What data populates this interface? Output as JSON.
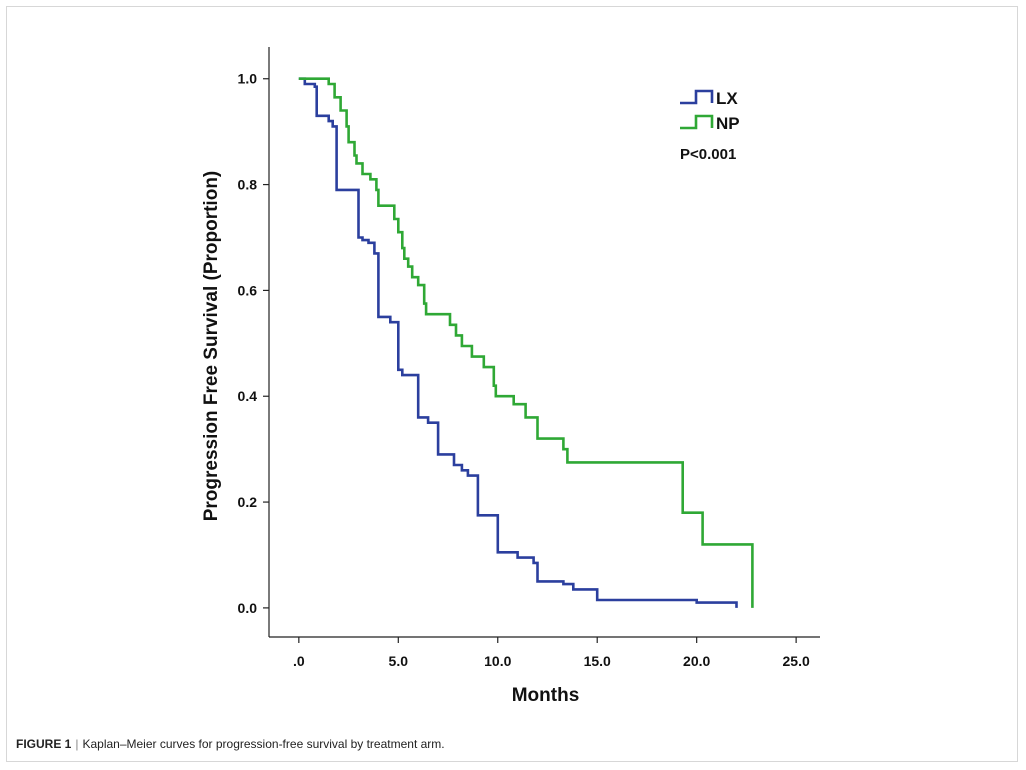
{
  "caption": {
    "label": "FIGURE 1",
    "separator": "|",
    "text": "Kaplan–Meier curves for progression-free survival by treatment arm."
  },
  "chart_data": {
    "type": "line",
    "step": true,
    "title": "",
    "xlabel": "Months",
    "ylabel": "Progression Free Survival (Proportion)",
    "xlim": [
      -1.5,
      26.2
    ],
    "ylim": [
      -0.055,
      1.06
    ],
    "x_ticks": [
      0,
      5,
      10,
      15,
      20,
      25
    ],
    "x_tick_labels": [
      ".0",
      "5.0",
      "10.0",
      "15.0",
      "20.0",
      "25.0"
    ],
    "y_ticks": [
      0,
      0.2,
      0.4,
      0.6,
      0.8,
      1.0
    ],
    "y_tick_labels": [
      "0.0",
      "0.2",
      "0.4",
      "0.6",
      "0.8",
      "1.0"
    ],
    "legend_position": "top-right",
    "annotation": "P<0.001",
    "series": [
      {
        "name": "LX",
        "color": "#2b3f9e",
        "points": [
          [
            0,
            1.0
          ],
          [
            0.3,
            0.99
          ],
          [
            0.8,
            0.985
          ],
          [
            0.9,
            0.93
          ],
          [
            1.5,
            0.92
          ],
          [
            1.7,
            0.91
          ],
          [
            1.9,
            0.79
          ],
          [
            3.0,
            0.7
          ],
          [
            3.2,
            0.695
          ],
          [
            3.5,
            0.69
          ],
          [
            3.8,
            0.67
          ],
          [
            4.0,
            0.55
          ],
          [
            4.6,
            0.54
          ],
          [
            5.0,
            0.45
          ],
          [
            5.2,
            0.44
          ],
          [
            6.0,
            0.36
          ],
          [
            6.5,
            0.35
          ],
          [
            7.0,
            0.29
          ],
          [
            7.8,
            0.27
          ],
          [
            8.2,
            0.26
          ],
          [
            8.5,
            0.25
          ],
          [
            9.0,
            0.175
          ],
          [
            10.0,
            0.105
          ],
          [
            11.0,
            0.095
          ],
          [
            11.8,
            0.085
          ],
          [
            12.0,
            0.05
          ],
          [
            13.3,
            0.045
          ],
          [
            13.8,
            0.035
          ],
          [
            15.0,
            0.015
          ],
          [
            20.0,
            0.01
          ],
          [
            22.0,
            0.0
          ]
        ]
      },
      {
        "name": "NP",
        "color": "#2fa835",
        "points": [
          [
            0,
            1.0
          ],
          [
            1.5,
            0.99
          ],
          [
            1.8,
            0.965
          ],
          [
            2.1,
            0.94
          ],
          [
            2.4,
            0.91
          ],
          [
            2.5,
            0.88
          ],
          [
            2.8,
            0.855
          ],
          [
            2.9,
            0.84
          ],
          [
            3.2,
            0.82
          ],
          [
            3.6,
            0.81
          ],
          [
            3.9,
            0.79
          ],
          [
            4.0,
            0.76
          ],
          [
            4.6,
            0.76
          ],
          [
            4.8,
            0.735
          ],
          [
            5.0,
            0.71
          ],
          [
            5.2,
            0.68
          ],
          [
            5.3,
            0.66
          ],
          [
            5.5,
            0.645
          ],
          [
            5.7,
            0.625
          ],
          [
            6.0,
            0.61
          ],
          [
            6.3,
            0.575
          ],
          [
            6.4,
            0.555
          ],
          [
            7.3,
            0.555
          ],
          [
            7.6,
            0.535
          ],
          [
            7.9,
            0.515
          ],
          [
            8.2,
            0.495
          ],
          [
            8.7,
            0.475
          ],
          [
            9.3,
            0.455
          ],
          [
            9.8,
            0.42
          ],
          [
            9.9,
            0.4
          ],
          [
            10.8,
            0.385
          ],
          [
            11.4,
            0.36
          ],
          [
            12.0,
            0.32
          ],
          [
            13.3,
            0.3
          ],
          [
            13.5,
            0.275
          ],
          [
            19.3,
            0.18
          ],
          [
            20.3,
            0.12
          ],
          [
            22.8,
            0.0
          ]
        ]
      }
    ]
  }
}
